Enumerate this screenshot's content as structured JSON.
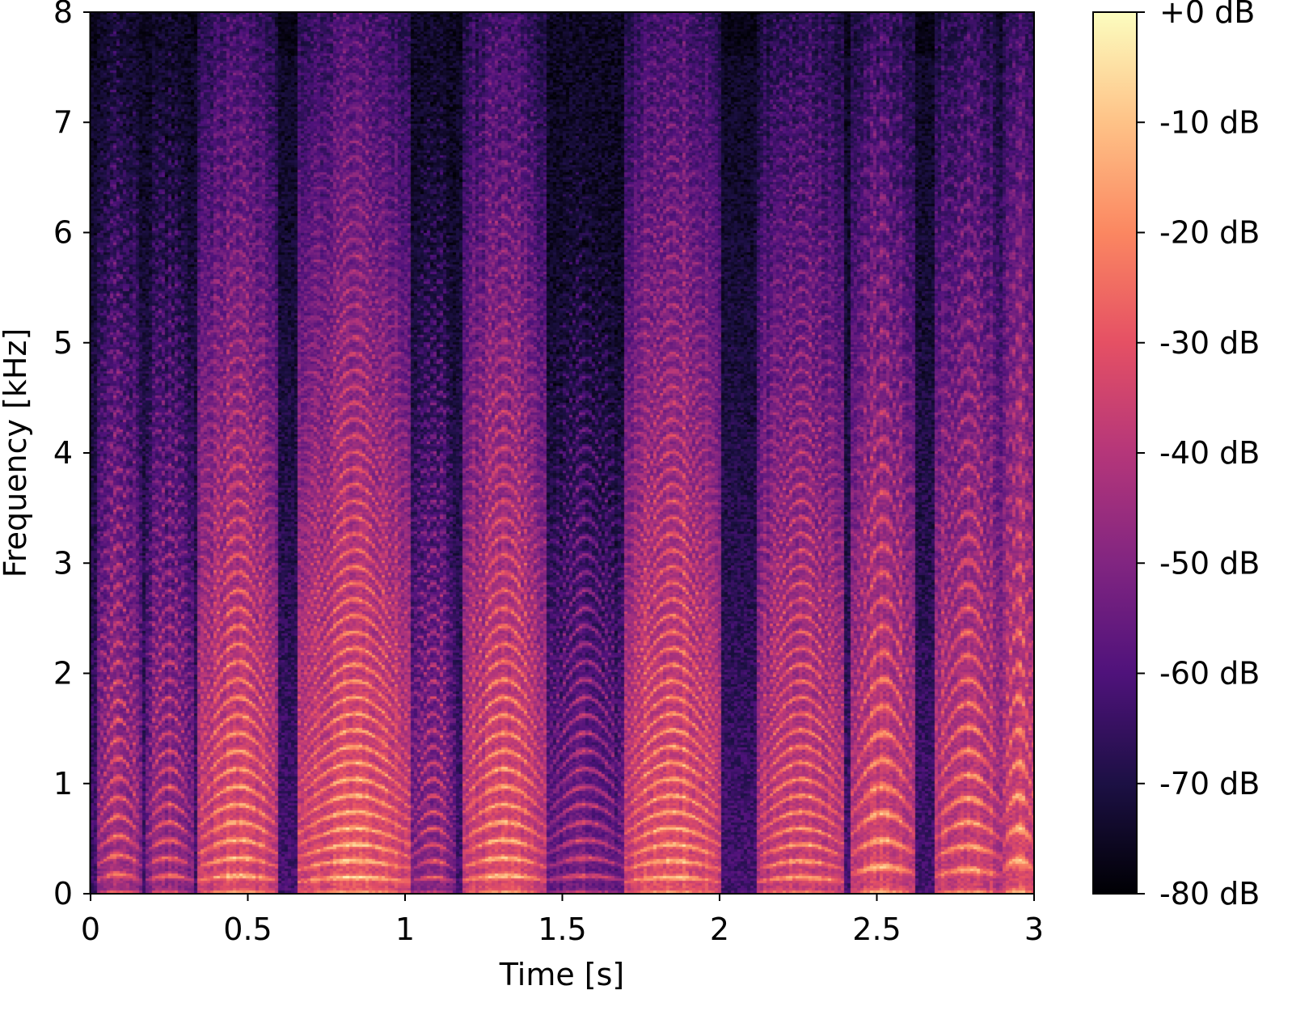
{
  "chart_data": {
    "type": "heatmap",
    "xlabel": "Time [s]",
    "ylabel": "Frequency [kHz]",
    "xlim": [
      0,
      3
    ],
    "ylim": [
      0,
      8
    ],
    "x_ticks": [
      {
        "value": 0,
        "label": "0"
      },
      {
        "value": 0.5,
        "label": "0.5"
      },
      {
        "value": 1,
        "label": "1"
      },
      {
        "value": 1.5,
        "label": "1.5"
      },
      {
        "value": 2,
        "label": "2"
      },
      {
        "value": 2.5,
        "label": "2.5"
      },
      {
        "value": 3,
        "label": "3"
      }
    ],
    "y_ticks": [
      {
        "value": 0,
        "label": "0"
      },
      {
        "value": 1,
        "label": "1"
      },
      {
        "value": 2,
        "label": "2"
      },
      {
        "value": 3,
        "label": "3"
      },
      {
        "value": 4,
        "label": "4"
      },
      {
        "value": 5,
        "label": "5"
      },
      {
        "value": 6,
        "label": "6"
      },
      {
        "value": 7,
        "label": "7"
      },
      {
        "value": 8,
        "label": "8"
      }
    ],
    "colorbar": {
      "colormap": "magma",
      "range": [
        -80,
        0
      ],
      "ticks": [
        {
          "value": 0,
          "label": "+0 dB"
        },
        {
          "value": -10,
          "label": "-10 dB"
        },
        {
          "value": -20,
          "label": "-20 dB"
        },
        {
          "value": -30,
          "label": "-30 dB"
        },
        {
          "value": -40,
          "label": "-40 dB"
        },
        {
          "value": -50,
          "label": "-50 dB"
        },
        {
          "value": -60,
          "label": "-60 dB"
        },
        {
          "value": -70,
          "label": "-70 dB"
        },
        {
          "value": -80,
          "label": "-80 dB"
        }
      ],
      "colors": [
        "#000004",
        "#1c1044",
        "#4f127b",
        "#812581",
        "#b5367a",
        "#e55064",
        "#fb8761",
        "#fec287",
        "#fcfdbf"
      ]
    },
    "segments": [
      {
        "start": 0.02,
        "end": 0.16,
        "f0": 0.13,
        "level": -42
      },
      {
        "start": 0.17,
        "end": 0.33,
        "f0": 0.12,
        "level": -45
      },
      {
        "start": 0.34,
        "end": 0.6,
        "f0": 0.12,
        "level": -32
      },
      {
        "start": 0.66,
        "end": 1.02,
        "f0": 0.11,
        "level": -30
      },
      {
        "start": 1.02,
        "end": 1.16,
        "f0": 0.11,
        "level": -48
      },
      {
        "start": 1.18,
        "end": 1.45,
        "f0": 0.12,
        "level": -32
      },
      {
        "start": 1.45,
        "end": 1.7,
        "f0": 0.12,
        "level": -52
      },
      {
        "start": 1.7,
        "end": 2.0,
        "f0": 0.11,
        "level": -30
      },
      {
        "start": 2.12,
        "end": 2.4,
        "f0": 0.11,
        "level": -34
      },
      {
        "start": 2.42,
        "end": 2.62,
        "f0": 0.18,
        "level": -33
      },
      {
        "start": 2.68,
        "end": 2.9,
        "f0": 0.16,
        "level": -34
      },
      {
        "start": 2.9,
        "end": 3.0,
        "f0": 0.22,
        "level": -32
      }
    ]
  }
}
